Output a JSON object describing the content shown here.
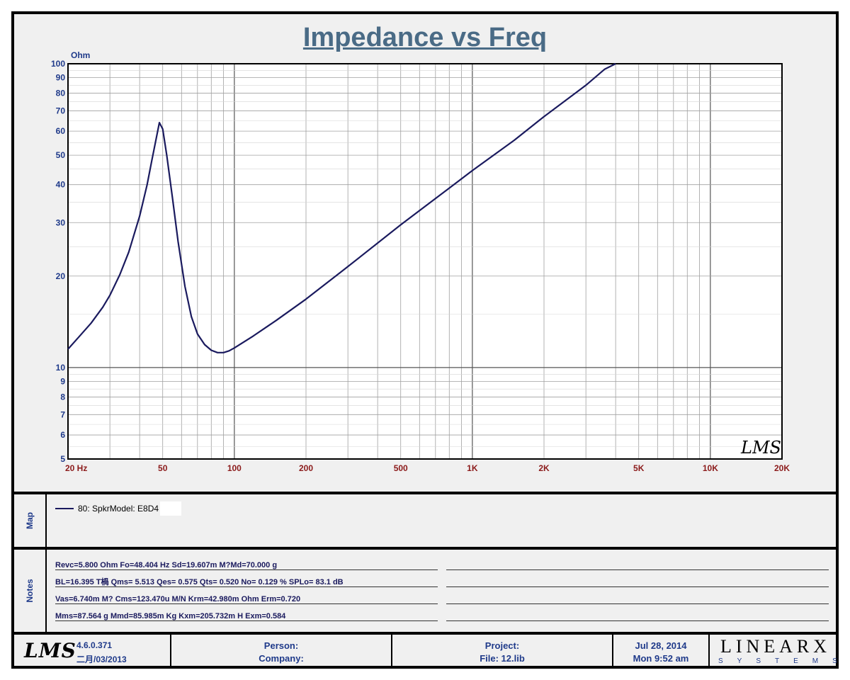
{
  "chart_data": {
    "type": "line",
    "title": "Impedance vs Freq",
    "ylabel": "Ohm",
    "xscale": "log",
    "yscale": "log",
    "xlim": [
      20,
      20000
    ],
    "ylim": [
      5,
      100
    ],
    "grid": true,
    "xtick_labels": [
      {
        "v": 20,
        "label": "20  Hz"
      },
      {
        "v": 50,
        "label": "50"
      },
      {
        "v": 100,
        "label": "100"
      },
      {
        "v": 200,
        "label": "200"
      },
      {
        "v": 500,
        "label": "500"
      },
      {
        "v": 1000,
        "label": "1K"
      },
      {
        "v": 2000,
        "label": "2K"
      },
      {
        "v": 5000,
        "label": "5K"
      },
      {
        "v": 10000,
        "label": "10K"
      },
      {
        "v": 20000,
        "label": "20K"
      }
    ],
    "ytick_labels": [
      {
        "v": 5,
        "label": "5"
      },
      {
        "v": 6,
        "label": "6"
      },
      {
        "v": 7,
        "label": "7"
      },
      {
        "v": 8,
        "label": "8"
      },
      {
        "v": 9,
        "label": "9"
      },
      {
        "v": 10,
        "label": "10"
      },
      {
        "v": 20,
        "label": "20"
      },
      {
        "v": 30,
        "label": "30"
      },
      {
        "v": 40,
        "label": "40"
      },
      {
        "v": 50,
        "label": "50"
      },
      {
        "v": 60,
        "label": "60"
      },
      {
        "v": 70,
        "label": "70"
      },
      {
        "v": 80,
        "label": "80"
      },
      {
        "v": 90,
        "label": "90"
      },
      {
        "v": 100,
        "label": "100"
      }
    ],
    "series": [
      {
        "color": "#1a1a5e",
        "x": [
          20,
          22,
          25,
          28,
          30,
          33,
          36,
          40,
          43,
          45,
          47,
          48.4,
          50,
          52,
          55,
          58,
          62,
          66,
          70,
          75,
          80,
          85,
          90,
          95,
          100,
          120,
          150,
          200,
          300,
          500,
          700,
          1000,
          1500,
          2000,
          3000,
          3600,
          4000
        ],
        "y": [
          11.5,
          12.5,
          14.0,
          15.8,
          17.3,
          20.2,
          24.0,
          31.5,
          40.0,
          48.0,
          57.0,
          64.0,
          61.0,
          50.0,
          36.0,
          26.0,
          18.5,
          14.7,
          12.9,
          11.9,
          11.4,
          11.2,
          11.2,
          11.35,
          11.6,
          12.7,
          14.3,
          16.8,
          21.5,
          29.5,
          36.0,
          44.5,
          56.0,
          67.0,
          85.0,
          96.0,
          100.0
        ]
      }
    ],
    "watermark": "LMS"
  },
  "map": {
    "label": "Map",
    "entry": "80: SpkrModel: E8D4"
  },
  "notes": {
    "label": "Notes",
    "rows": [
      "Revc=5.800 Ohm  Fo=48.404 Hz  Sd=19.607m M?Md=70.000 g",
      "BL=16.395 T楇  Qms= 5.513  Qes= 0.575  Qts= 0.520  No= 0.129 %  SPLo= 83.1 dB",
      "Vas=6.740m M? Cms=123.470u M/N  Krm=42.980m Ohm  Erm=0.720",
      "Mms=87.564 g  Mmd=85.985m Kg  Kxm=205.732m H  Exm=0.584"
    ]
  },
  "footer": {
    "logo": "LMS",
    "version": "4.6.0.371",
    "build_date": "二月/03/2013",
    "person_label": "Person:",
    "company_label": "Company:",
    "project_label": "Project:",
    "file_label": "File: 12.lib",
    "date": "Jul 28, 2014",
    "time": "Mon  9:52 am",
    "brand": "LINEARX",
    "brand_sub": "SYSTEMS"
  },
  "colors": {
    "curve": "#1a1a5e",
    "axis_label": "#1f3a8a",
    "x_tick": "#8b1a1a",
    "title": "#4a6b86"
  }
}
